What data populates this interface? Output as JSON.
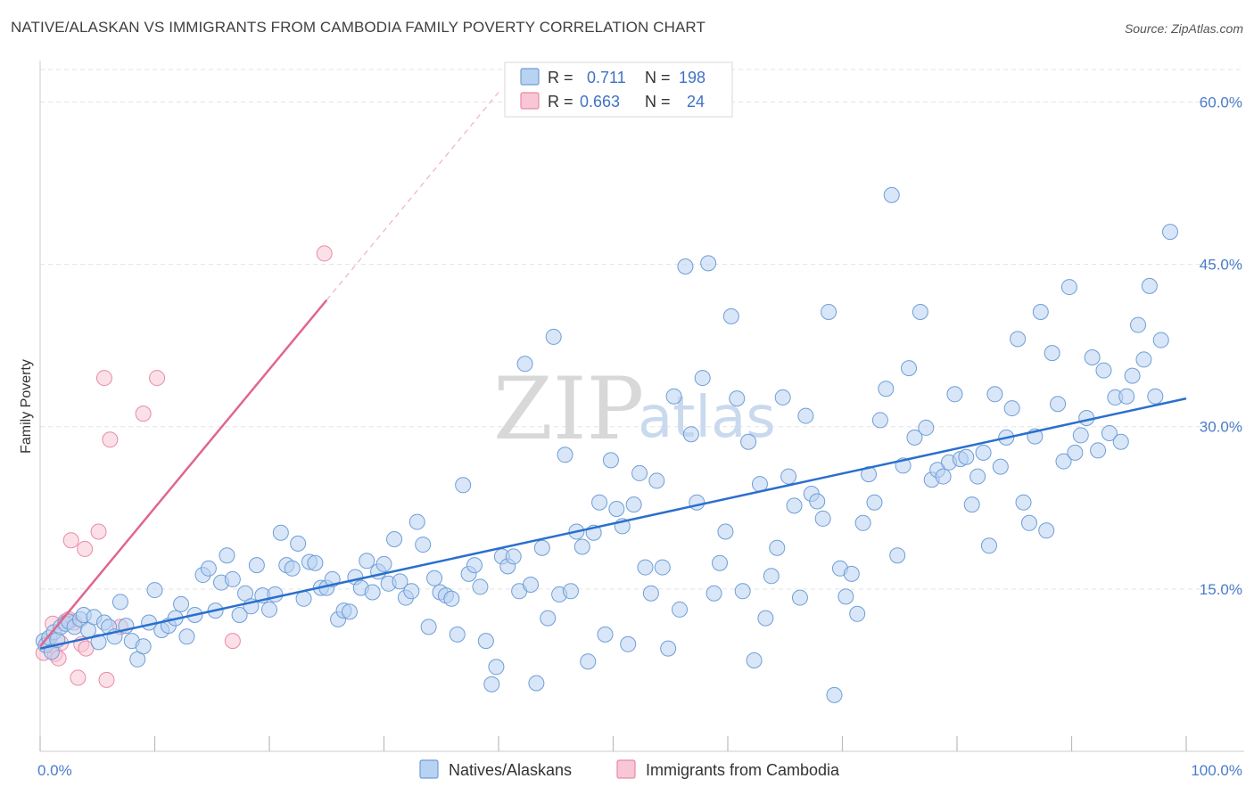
{
  "title": "NATIVE/ALASKAN VS IMMIGRANTS FROM CAMBODIA FAMILY POVERTY CORRELATION CHART",
  "source": "Source: ZipAtlas.com",
  "watermark": {
    "zip": "ZIP",
    "atlas": "atlas"
  },
  "legend": {
    "rows": [
      {
        "r_label": "R =",
        "r_value": "0.711",
        "n_label": "N =",
        "n_value": "198"
      },
      {
        "r_label": "R =",
        "r_value": "0.663",
        "n_label": "N =",
        "n_value": "24"
      }
    ]
  },
  "colors": {
    "blue_fill": "#b8d2f2",
    "blue_stroke": "#6f9ed6",
    "blue_line": "#2a6fce",
    "pink_fill": "#f8c6d4",
    "pink_stroke": "#e98aa8",
    "pink_line": "#e0668e",
    "tick_text": "#4a7cc9",
    "grid": "#e3e3e3"
  },
  "chart_data": {
    "type": "scatter",
    "title": "NATIVE/ALASKAN VS IMMIGRANTS FROM CAMBODIA FAMILY POVERTY CORRELATION CHART",
    "xlabel": "",
    "ylabel": "Family Poverty",
    "xlim": [
      0,
      100
    ],
    "ylim": [
      0,
      63
    ],
    "x_tick_labels": [
      "0.0%",
      "100.0%"
    ],
    "y_ticks": [
      15,
      30,
      45,
      60
    ],
    "y_tick_labels": [
      "15.0%",
      "30.0%",
      "45.0%",
      "60.0%"
    ],
    "grid": true,
    "legend_position": "top-center",
    "series": [
      {
        "name": "Natives/Alaskans",
        "color": "#b8d2f2",
        "stats": {
          "R": 0.711,
          "N": 198
        },
        "trend": {
          "x": [
            0,
            100
          ],
          "y": [
            9.5,
            32.6
          ]
        },
        "points": [
          [
            0.3,
            10.2
          ],
          [
            0.5,
            9.8
          ],
          [
            0.8,
            10.5
          ],
          [
            1.0,
            9.2
          ],
          [
            1.2,
            11.0
          ],
          [
            1.5,
            10.3
          ],
          [
            1.8,
            11.5
          ],
          [
            2.2,
            11.8
          ],
          [
            2.5,
            12.0
          ],
          [
            3.0,
            11.5
          ],
          [
            3.5,
            12.2
          ],
          [
            3.8,
            12.6
          ],
          [
            4.2,
            11.2
          ],
          [
            4.7,
            12.4
          ],
          [
            5.1,
            10.1
          ],
          [
            5.6,
            11.9
          ],
          [
            6.0,
            11.5
          ],
          [
            6.5,
            10.6
          ],
          [
            7.0,
            13.8
          ],
          [
            7.5,
            11.6
          ],
          [
            8.0,
            10.2
          ],
          [
            8.5,
            8.5
          ],
          [
            9.0,
            9.7
          ],
          [
            9.5,
            11.9
          ],
          [
            10.0,
            14.9
          ],
          [
            10.6,
            11.2
          ],
          [
            11.2,
            11.6
          ],
          [
            11.8,
            12.3
          ],
          [
            12.3,
            13.6
          ],
          [
            12.8,
            10.6
          ],
          [
            13.5,
            12.6
          ],
          [
            14.2,
            16.3
          ],
          [
            14.7,
            16.9
          ],
          [
            15.3,
            13.0
          ],
          [
            15.8,
            15.6
          ],
          [
            16.3,
            18.1
          ],
          [
            16.8,
            15.9
          ],
          [
            17.4,
            12.6
          ],
          [
            17.9,
            14.6
          ],
          [
            18.4,
            13.4
          ],
          [
            18.9,
            17.2
          ],
          [
            19.4,
            14.4
          ],
          [
            20.0,
            13.1
          ],
          [
            20.5,
            14.5
          ],
          [
            21.0,
            20.2
          ],
          [
            21.5,
            17.2
          ],
          [
            22.0,
            16.9
          ],
          [
            22.5,
            19.2
          ],
          [
            23.0,
            14.1
          ],
          [
            23.5,
            17.5
          ],
          [
            24.0,
            17.4
          ],
          [
            24.5,
            15.1
          ],
          [
            25.0,
            15.1
          ],
          [
            25.5,
            15.9
          ],
          [
            26.0,
            12.2
          ],
          [
            26.5,
            13.0
          ],
          [
            27.0,
            12.9
          ],
          [
            27.5,
            16.1
          ],
          [
            28.0,
            15.1
          ],
          [
            28.5,
            17.6
          ],
          [
            29.0,
            14.7
          ],
          [
            29.5,
            16.6
          ],
          [
            30.0,
            17.3
          ],
          [
            30.4,
            15.5
          ],
          [
            30.9,
            19.6
          ],
          [
            31.4,
            15.7
          ],
          [
            31.9,
            14.2
          ],
          [
            32.4,
            14.8
          ],
          [
            32.9,
            21.2
          ],
          [
            33.4,
            19.1
          ],
          [
            33.9,
            11.5
          ],
          [
            34.4,
            16.0
          ],
          [
            34.9,
            14.7
          ],
          [
            35.4,
            14.4
          ],
          [
            35.9,
            14.1
          ],
          [
            36.4,
            10.8
          ],
          [
            36.9,
            24.6
          ],
          [
            37.4,
            16.4
          ],
          [
            37.9,
            17.2
          ],
          [
            38.4,
            15.2
          ],
          [
            38.9,
            10.2
          ],
          [
            39.4,
            6.2
          ],
          [
            39.8,
            7.8
          ],
          [
            40.3,
            18.0
          ],
          [
            40.8,
            17.1
          ],
          [
            41.3,
            18.0
          ],
          [
            41.8,
            14.8
          ],
          [
            42.3,
            35.8
          ],
          [
            42.8,
            15.4
          ],
          [
            43.3,
            6.3
          ],
          [
            43.8,
            18.8
          ],
          [
            44.3,
            12.3
          ],
          [
            44.8,
            38.3
          ],
          [
            45.3,
            14.5
          ],
          [
            45.8,
            27.4
          ],
          [
            46.3,
            14.8
          ],
          [
            46.8,
            20.3
          ],
          [
            47.3,
            18.9
          ],
          [
            47.8,
            8.3
          ],
          [
            48.3,
            20.2
          ],
          [
            48.8,
            23.0
          ],
          [
            49.3,
            10.8
          ],
          [
            49.8,
            26.9
          ],
          [
            50.3,
            22.4
          ],
          [
            50.8,
            20.8
          ],
          [
            51.3,
            9.9
          ],
          [
            51.8,
            22.8
          ],
          [
            52.3,
            25.7
          ],
          [
            52.8,
            17.0
          ],
          [
            53.3,
            14.6
          ],
          [
            53.8,
            25.0
          ],
          [
            54.3,
            17.0
          ],
          [
            54.8,
            9.5
          ],
          [
            55.3,
            32.8
          ],
          [
            55.8,
            13.1
          ],
          [
            56.3,
            44.8
          ],
          [
            56.8,
            29.3
          ],
          [
            57.3,
            23.0
          ],
          [
            57.8,
            34.5
          ],
          [
            58.3,
            45.1
          ],
          [
            58.8,
            14.6
          ],
          [
            59.3,
            17.4
          ],
          [
            59.8,
            20.3
          ],
          [
            60.3,
            40.2
          ],
          [
            60.8,
            32.6
          ],
          [
            61.3,
            14.8
          ],
          [
            61.8,
            28.6
          ],
          [
            62.3,
            8.4
          ],
          [
            62.8,
            24.7
          ],
          [
            63.3,
            12.3
          ],
          [
            63.8,
            16.2
          ],
          [
            64.3,
            18.8
          ],
          [
            64.8,
            32.7
          ],
          [
            65.3,
            25.4
          ],
          [
            65.8,
            22.7
          ],
          [
            66.3,
            14.2
          ],
          [
            66.8,
            31.0
          ],
          [
            67.3,
            23.8
          ],
          [
            67.8,
            23.1
          ],
          [
            68.3,
            21.5
          ],
          [
            68.8,
            40.6
          ],
          [
            69.3,
            5.2
          ],
          [
            69.8,
            16.9
          ],
          [
            70.3,
            14.3
          ],
          [
            70.8,
            16.4
          ],
          [
            71.3,
            12.7
          ],
          [
            71.8,
            21.1
          ],
          [
            72.3,
            25.6
          ],
          [
            72.8,
            23.0
          ],
          [
            73.3,
            30.6
          ],
          [
            73.8,
            33.5
          ],
          [
            74.3,
            51.4
          ],
          [
            74.8,
            18.1
          ],
          [
            75.3,
            26.4
          ],
          [
            75.8,
            35.4
          ],
          [
            76.3,
            29.0
          ],
          [
            76.8,
            40.6
          ],
          [
            77.3,
            29.9
          ],
          [
            77.8,
            25.1
          ],
          [
            78.3,
            26.0
          ],
          [
            78.8,
            25.4
          ],
          [
            79.3,
            26.7
          ],
          [
            79.8,
            33.0
          ],
          [
            80.3,
            27.0
          ],
          [
            80.8,
            27.2
          ],
          [
            81.3,
            22.8
          ],
          [
            81.8,
            25.4
          ],
          [
            82.3,
            27.6
          ],
          [
            82.8,
            19.0
          ],
          [
            83.3,
            33.0
          ],
          [
            83.8,
            26.3
          ],
          [
            84.3,
            29.0
          ],
          [
            84.8,
            31.7
          ],
          [
            85.3,
            38.1
          ],
          [
            85.8,
            23.0
          ],
          [
            86.3,
            21.1
          ],
          [
            86.8,
            29.1
          ],
          [
            87.3,
            40.6
          ],
          [
            87.8,
            20.4
          ],
          [
            88.3,
            36.8
          ],
          [
            88.8,
            32.1
          ],
          [
            89.3,
            26.8
          ],
          [
            89.8,
            42.9
          ],
          [
            90.3,
            27.6
          ],
          [
            90.8,
            29.2
          ],
          [
            91.3,
            30.8
          ],
          [
            91.8,
            36.4
          ],
          [
            92.3,
            27.8
          ],
          [
            92.8,
            35.2
          ],
          [
            93.3,
            29.4
          ],
          [
            93.8,
            32.7
          ],
          [
            94.3,
            28.6
          ],
          [
            94.8,
            32.8
          ],
          [
            95.3,
            34.7
          ],
          [
            95.8,
            39.4
          ],
          [
            96.3,
            36.2
          ],
          [
            96.8,
            43.0
          ],
          [
            97.3,
            32.8
          ],
          [
            97.8,
            38.0
          ],
          [
            98.6,
            48.0
          ]
        ]
      },
      {
        "name": "Immigrants from Cambodia",
        "color": "#f8c6d4",
        "stats": {
          "R": 0.663,
          "N": 24
        },
        "trend": {
          "x": [
            0,
            25
          ],
          "y": [
            9.7,
            41.7
          ]
        },
        "trend_extension": {
          "x": [
            25,
            40
          ],
          "y": [
            41.7,
            60.9
          ]
        },
        "points": [
          [
            0.3,
            9.1
          ],
          [
            0.6,
            10.0
          ],
          [
            0.9,
            9.8
          ],
          [
            1.1,
            11.8
          ],
          [
            1.3,
            9.0
          ],
          [
            1.6,
            8.6
          ],
          [
            1.8,
            10.0
          ],
          [
            2.2,
            12.0
          ],
          [
            2.5,
            12.2
          ],
          [
            2.7,
            19.5
          ],
          [
            3.0,
            11.9
          ],
          [
            3.3,
            6.8
          ],
          [
            3.6,
            9.9
          ],
          [
            3.9,
            18.7
          ],
          [
            4.0,
            9.5
          ],
          [
            5.1,
            20.3
          ],
          [
            5.6,
            34.5
          ],
          [
            5.8,
            6.6
          ],
          [
            6.1,
            28.8
          ],
          [
            7.0,
            11.5
          ],
          [
            9.0,
            31.2
          ],
          [
            10.2,
            34.5
          ],
          [
            16.8,
            10.2
          ],
          [
            24.8,
            46.0
          ]
        ]
      }
    ]
  },
  "bottom_legend": {
    "items": [
      {
        "label": "Natives/Alaskans"
      },
      {
        "label": "Immigrants from Cambodia"
      }
    ]
  }
}
